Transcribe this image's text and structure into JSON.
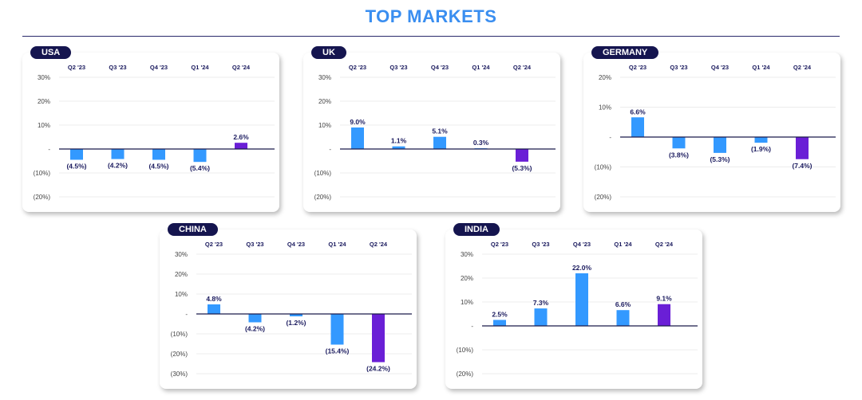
{
  "title": "TOP MARKETS",
  "colors": {
    "bar": "#3399ff",
    "highlight": "#6a1fd6",
    "text": "#1a1a5e",
    "title": "#3a8ef0"
  },
  "chart_data": [
    {
      "type": "bar",
      "title": "USA",
      "categories": [
        "Q2 '23",
        "Q3 '23",
        "Q4 '23",
        "Q1 '24",
        "Q2 '24"
      ],
      "values": [
        -4.5,
        -4.2,
        -4.5,
        -5.4,
        2.6
      ],
      "labels": [
        "(4.5%)",
        "(4.2%)",
        "(4.5%)",
        "(5.4%)",
        "2.6%"
      ],
      "yticks": [
        "30%",
        "20%",
        "10%",
        "-",
        "(10%)",
        "(20%)"
      ],
      "ytick_values": [
        30,
        20,
        10,
        0,
        -10,
        -20
      ],
      "ylim": [
        -20,
        30
      ]
    },
    {
      "type": "bar",
      "title": "UK",
      "categories": [
        "Q2 '23",
        "Q3 '23",
        "Q4 '23",
        "Q1 '24",
        "Q2 '24"
      ],
      "values": [
        9.0,
        1.1,
        5.1,
        0.3,
        -5.3
      ],
      "labels": [
        "9.0%",
        "1.1%",
        "5.1%",
        "0.3%",
        "(5.3%)"
      ],
      "yticks": [
        "30%",
        "20%",
        "10%",
        "-",
        "(10%)",
        "(20%)"
      ],
      "ytick_values": [
        30,
        20,
        10,
        0,
        -10,
        -20
      ],
      "ylim": [
        -20,
        30
      ]
    },
    {
      "type": "bar",
      "title": "GERMANY",
      "categories": [
        "Q2 '23",
        "Q3 '23",
        "Q4 '23",
        "Q1 '24",
        "Q2 '24"
      ],
      "values": [
        6.6,
        -3.8,
        -5.3,
        -1.9,
        -7.4
      ],
      "labels": [
        "6.6%",
        "(3.8%)",
        "(5.3%)",
        "(1.9%)",
        "(7.4%)"
      ],
      "yticks": [
        "20%",
        "10%",
        "-",
        "(10%)",
        "(20%)"
      ],
      "ytick_values": [
        20,
        10,
        0,
        -10,
        -20
      ],
      "ylim": [
        -20,
        20
      ]
    },
    {
      "type": "bar",
      "title": "CHINA",
      "categories": [
        "Q2 '23",
        "Q3 '23",
        "Q4 '23",
        "Q1 '24",
        "Q2 '24"
      ],
      "values": [
        4.8,
        -4.2,
        -1.2,
        -15.4,
        -24.2
      ],
      "labels": [
        "4.8%",
        "(4.2%)",
        "(1.2%)",
        "(15.4%)",
        "(24.2%)"
      ],
      "yticks": [
        "30%",
        "20%",
        "10%",
        "-",
        "(10%)",
        "(20%)",
        "(30%)"
      ],
      "ytick_values": [
        30,
        20,
        10,
        0,
        -10,
        -20,
        -30
      ],
      "ylim": [
        -30,
        30
      ]
    },
    {
      "type": "bar",
      "title": "INDIA",
      "categories": [
        "Q2 '23",
        "Q3 '23",
        "Q4 '23",
        "Q1 '24",
        "Q2 '24"
      ],
      "values": [
        2.5,
        7.3,
        22.0,
        6.6,
        9.1
      ],
      "labels": [
        "2.5%",
        "7.3%",
        "22.0%",
        "6.6%",
        "9.1%"
      ],
      "yticks": [
        "30%",
        "20%",
        "10%",
        "-",
        "(10%)",
        "(20%)"
      ],
      "ytick_values": [
        30,
        20,
        10,
        0,
        -10,
        -20
      ],
      "ylim": [
        -20,
        30
      ]
    }
  ]
}
